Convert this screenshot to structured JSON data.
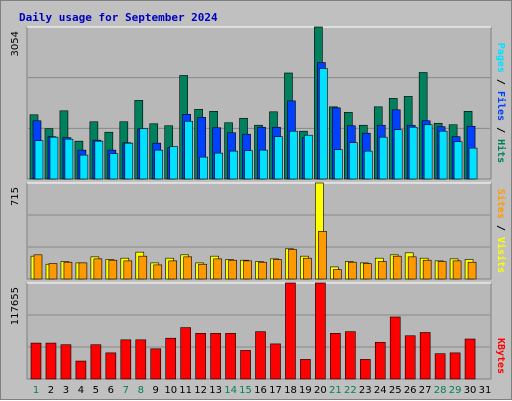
{
  "chart_data": [
    {
      "type": "bar",
      "title": "Daily usage for September 2024",
      "ymax_label": "3054",
      "right_label": [
        "Pages",
        "Files",
        "Hits"
      ],
      "categories": [
        "1",
        "2",
        "3",
        "4",
        "5",
        "6",
        "7",
        "8",
        "9",
        "10",
        "11",
        "12",
        "13",
        "14",
        "15",
        "16",
        "17",
        "18",
        "19",
        "20",
        "21",
        "22",
        "23",
        "24",
        "25",
        "26",
        "27",
        "28",
        "29",
        "30",
        "31"
      ],
      "weekend_days": [
        "1",
        "7",
        "8",
        "14",
        "15",
        "21",
        "22",
        "28",
        "29"
      ],
      "colors": {
        "hits": "#00805C",
        "files": "#0040FF",
        "pages": "#00E0FF"
      },
      "series": [
        {
          "name": "Hits",
          "values": [
            1290,
            1010,
            1370,
            760,
            1150,
            940,
            1150,
            1580,
            1110,
            1070,
            2080,
            1400,
            1360,
            1130,
            1220,
            1080,
            1350,
            2130,
            960,
            3054,
            1450,
            1340,
            1080,
            1450,
            1620,
            1660,
            2140,
            1120,
            1090,
            1360,
            null
          ]
        },
        {
          "name": "Files",
          "values": [
            1170,
            850,
            830,
            580,
            780,
            580,
            730,
            1010,
            720,
            630,
            1300,
            1240,
            1030,
            930,
            900,
            1040,
            1040,
            1570,
            830,
            2340,
            1430,
            1070,
            920,
            1080,
            1390,
            1080,
            1170,
            1050,
            850,
            1060,
            null
          ]
        },
        {
          "name": "Pages",
          "values": [
            770,
            840,
            800,
            480,
            760,
            510,
            720,
            1010,
            580,
            650,
            1160,
            440,
            520,
            560,
            570,
            580,
            850,
            960,
            880,
            2220,
            590,
            730,
            560,
            840,
            990,
            1040,
            1090,
            960,
            750,
            620,
            null
          ]
        }
      ]
    },
    {
      "type": "bar",
      "ymax_label": "715",
      "right_label": [
        "Sites",
        "Visits"
      ],
      "colors": {
        "visits": "#FFFF00",
        "sites": "#FF9900"
      },
      "series": [
        {
          "name": "Visits",
          "values": [
            170,
            110,
            130,
            120,
            165,
            145,
            155,
            200,
            120,
            155,
            180,
            120,
            170,
            145,
            140,
            130,
            150,
            225,
            170,
            715,
            90,
            130,
            120,
            155,
            180,
            195,
            155,
            135,
            150,
            145,
            null
          ]
        },
        {
          "name": "Sites",
          "values": [
            180,
            115,
            125,
            120,
            150,
            140,
            135,
            170,
            105,
            135,
            165,
            110,
            150,
            140,
            135,
            125,
            145,
            220,
            155,
            355,
            70,
            125,
            115,
            130,
            170,
            165,
            140,
            130,
            135,
            125,
            null
          ]
        }
      ]
    },
    {
      "type": "bar",
      "ymax_label": "117655",
      "right_label": [
        "KBytes"
      ],
      "colors": {
        "kbytes": "#FF0000"
      },
      "series": [
        {
          "name": "KBytes",
          "values": [
            44000,
            44000,
            42000,
            22000,
            42000,
            32000,
            48000,
            48000,
            37000,
            50000,
            63000,
            56000,
            56000,
            56000,
            35000,
            58000,
            43000,
            117655,
            24000,
            117655,
            56000,
            58000,
            24000,
            45000,
            76000,
            53000,
            57000,
            31000,
            32000,
            49000,
            null
          ]
        }
      ]
    }
  ]
}
